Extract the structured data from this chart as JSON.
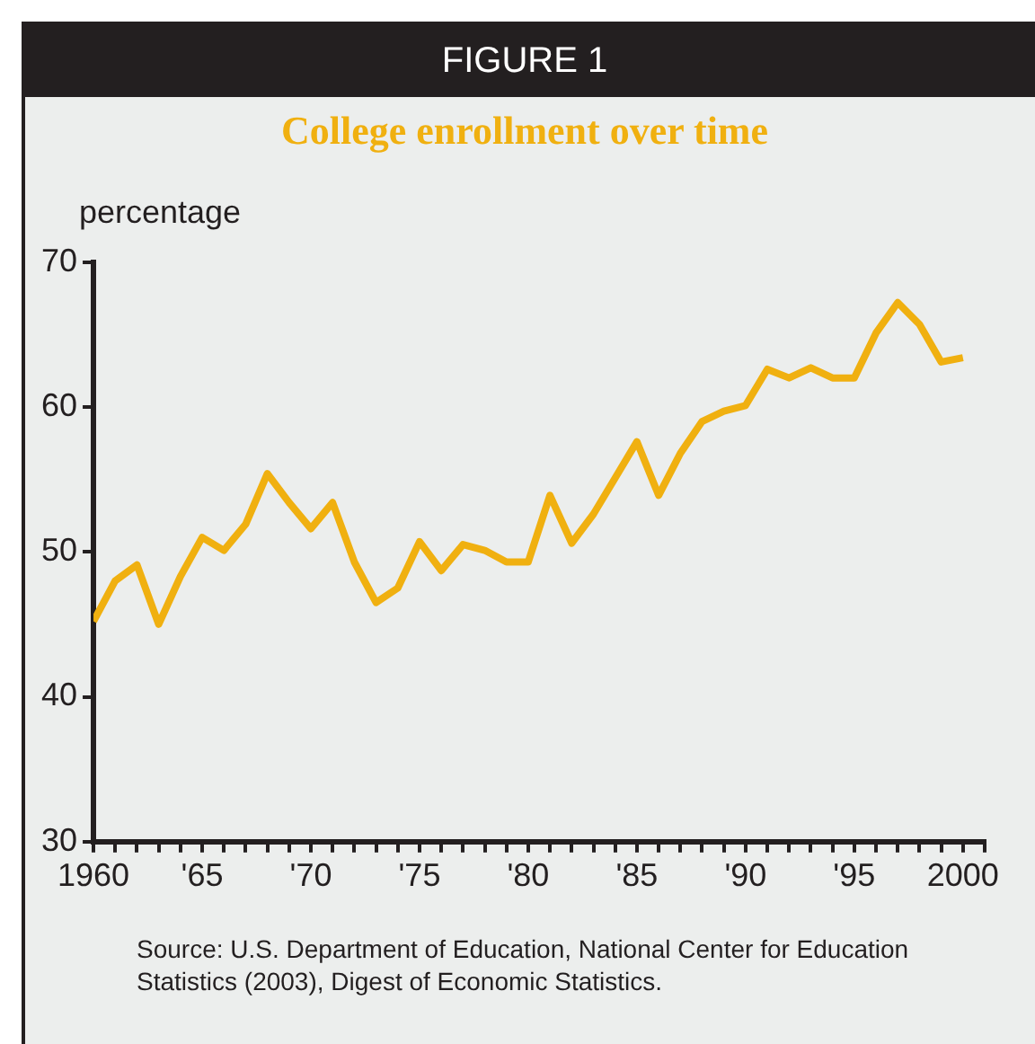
{
  "chart_data": {
    "type": "line",
    "title": "College enrollment over time",
    "ylabel": "percentage",
    "annotations": [
      "FIGURE 1",
      "Source: U.S. Department of Education, National Center for Education Statistics (2003), Digest of Economic Statistics."
    ],
    "x": [
      1960,
      1961,
      1962,
      1963,
      1964,
      1965,
      1966,
      1967,
      1968,
      1969,
      1970,
      1971,
      1972,
      1973,
      1974,
      1975,
      1976,
      1977,
      1978,
      1979,
      1980,
      1981,
      1982,
      1983,
      1984,
      1985,
      1986,
      1987,
      1988,
      1989,
      1990,
      1991,
      1992,
      1993,
      1994,
      1995,
      1996,
      1997,
      1998,
      1999,
      2000
    ],
    "series": [
      {
        "color": "#f0b010",
        "values": [
          45.2,
          48.0,
          49.1,
          45.0,
          48.3,
          51.0,
          50.1,
          51.9,
          55.4,
          53.4,
          51.6,
          53.4,
          49.3,
          46.5,
          47.5,
          50.7,
          48.7,
          50.5,
          50.1,
          49.3,
          49.3,
          53.9,
          50.6,
          52.6,
          55.1,
          57.6,
          53.9,
          56.8,
          59.0,
          59.7,
          60.1,
          62.6,
          62.0,
          62.7,
          62.0,
          62.0,
          65.1,
          67.2,
          65.7,
          63.1,
          63.4
        ]
      }
    ],
    "xlim": [
      1960,
      2001
    ],
    "xticks": [
      {
        "value": 1960,
        "label": "1960"
      },
      {
        "value": 1961,
        "label": null
      },
      {
        "value": 1962,
        "label": null
      },
      {
        "value": 1963,
        "label": null
      },
      {
        "value": 1964,
        "label": null
      },
      {
        "value": 1965,
        "label": "'65"
      },
      {
        "value": 1966,
        "label": null
      },
      {
        "value": 1967,
        "label": null
      },
      {
        "value": 1968,
        "label": null
      },
      {
        "value": 1969,
        "label": null
      },
      {
        "value": 1970,
        "label": "'70"
      },
      {
        "value": 1971,
        "label": null
      },
      {
        "value": 1972,
        "label": null
      },
      {
        "value": 1973,
        "label": null
      },
      {
        "value": 1974,
        "label": null
      },
      {
        "value": 1975,
        "label": "'75"
      },
      {
        "value": 1976,
        "label": null
      },
      {
        "value": 1977,
        "label": null
      },
      {
        "value": 1978,
        "label": null
      },
      {
        "value": 1979,
        "label": null
      },
      {
        "value": 1980,
        "label": "'80"
      },
      {
        "value": 1981,
        "label": null
      },
      {
        "value": 1982,
        "label": null
      },
      {
        "value": 1983,
        "label": null
      },
      {
        "value": 1984,
        "label": null
      },
      {
        "value": 1985,
        "label": "'85"
      },
      {
        "value": 1986,
        "label": null
      },
      {
        "value": 1987,
        "label": null
      },
      {
        "value": 1988,
        "label": null
      },
      {
        "value": 1989,
        "label": null
      },
      {
        "value": 1990,
        "label": "'90"
      },
      {
        "value": 1991,
        "label": null
      },
      {
        "value": 1992,
        "label": null
      },
      {
        "value": 1993,
        "label": null
      },
      {
        "value": 1994,
        "label": null
      },
      {
        "value": 1995,
        "label": "'95"
      },
      {
        "value": 1996,
        "label": null
      },
      {
        "value": 1997,
        "label": null
      },
      {
        "value": 1998,
        "label": null
      },
      {
        "value": 1999,
        "label": null
      },
      {
        "value": 2000,
        "label": "2000"
      },
      {
        "value": 2001,
        "label": null
      }
    ],
    "ylim": [
      30,
      70
    ],
    "yticks": [
      30,
      40,
      50,
      60,
      70
    ],
    "grid": false,
    "legend": false,
    "marker": "none",
    "line_style": "solid"
  }
}
